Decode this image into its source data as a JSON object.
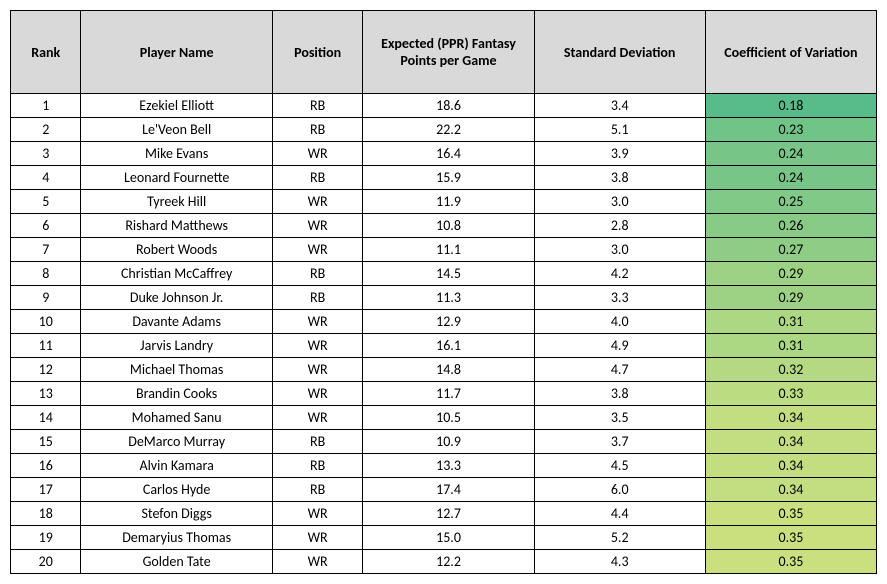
{
  "table": {
    "columns": [
      {
        "key": "rank",
        "label": "Rank"
      },
      {
        "key": "name",
        "label": "Player Name"
      },
      {
        "key": "pos",
        "label": "Position"
      },
      {
        "key": "pts",
        "label": "Expected (PPR) Fantasy Points per Game"
      },
      {
        "key": "std",
        "label": "Standard Deviation"
      },
      {
        "key": "cov",
        "label": "Coefficient of Variation"
      }
    ],
    "header_bg": "#d9d9d9",
    "border_color": "#000000",
    "cov_color_scale": {
      "min_value": 0.18,
      "max_value": 0.35,
      "min_color": "#57bb8a",
      "max_color": "#d4e07b"
    },
    "rows": [
      {
        "rank": "1",
        "name": "Ezekiel Elliott",
        "pos": "RB",
        "pts": "18.6",
        "std": "3.4",
        "cov": "0.18",
        "cov_bg": "#57bb8a"
      },
      {
        "rank": "2",
        "name": "Le'Veon Bell",
        "pos": "RB",
        "pts": "22.2",
        "std": "5.1",
        "cov": "0.23",
        "cov_bg": "#71c488"
      },
      {
        "rank": "3",
        "name": "Mike Evans",
        "pos": "WR",
        "pts": "16.4",
        "std": "3.9",
        "cov": "0.24",
        "cov_bg": "#78c687"
      },
      {
        "rank": "4",
        "name": "Leonard Fournette",
        "pos": "RB",
        "pts": "15.9",
        "std": "3.8",
        "cov": "0.24",
        "cov_bg": "#78c687"
      },
      {
        "rank": "5",
        "name": "Tyreek Hill",
        "pos": "WR",
        "pts": "11.9",
        "std": "3.0",
        "cov": "0.25",
        "cov_bg": "#80c987"
      },
      {
        "rank": "6",
        "name": "Rishard Matthews",
        "pos": "WR",
        "pts": "10.8",
        "std": "2.8",
        "cov": "0.26",
        "cov_bg": "#87cb86"
      },
      {
        "rank": "7",
        "name": "Robert Woods",
        "pos": "WR",
        "pts": "11.1",
        "std": "3.0",
        "cov": "0.27",
        "cov_bg": "#8fcd86"
      },
      {
        "rank": "8",
        "name": "Christian McCaffrey",
        "pos": "RB",
        "pts": "14.5",
        "std": "4.2",
        "cov": "0.29",
        "cov_bg": "#9dd284"
      },
      {
        "rank": "9",
        "name": "Duke Johnson Jr.",
        "pos": "RB",
        "pts": "11.3",
        "std": "3.3",
        "cov": "0.29",
        "cov_bg": "#9dd284"
      },
      {
        "rank": "10",
        "name": "Davante Adams",
        "pos": "WR",
        "pts": "12.9",
        "std": "4.0",
        "cov": "0.31",
        "cov_bg": "#acd783"
      },
      {
        "rank": "11",
        "name": "Jarvis Landry",
        "pos": "WR",
        "pts": "16.1",
        "std": "4.9",
        "cov": "0.31",
        "cov_bg": "#acd783"
      },
      {
        "rank": "12",
        "name": "Michael Thomas",
        "pos": "WR",
        "pts": "14.8",
        "std": "4.7",
        "cov": "0.32",
        "cov_bg": "#b4d982"
      },
      {
        "rank": "13",
        "name": "Brandin Cooks",
        "pos": "WR",
        "pts": "11.7",
        "std": "3.8",
        "cov": "0.33",
        "cov_bg": "#bbdc81"
      },
      {
        "rank": "14",
        "name": "Mohamed Sanu",
        "pos": "WR",
        "pts": "10.5",
        "std": "3.5",
        "cov": "0.34",
        "cov_bg": "#c3de80"
      },
      {
        "rank": "15",
        "name": "DeMarco Murray",
        "pos": "RB",
        "pts": "10.9",
        "std": "3.7",
        "cov": "0.34",
        "cov_bg": "#c3de80"
      },
      {
        "rank": "16",
        "name": "Alvin Kamara",
        "pos": "RB",
        "pts": "13.3",
        "std": "4.5",
        "cov": "0.34",
        "cov_bg": "#c3de80"
      },
      {
        "rank": "17",
        "name": "Carlos Hyde",
        "pos": "RB",
        "pts": "17.4",
        "std": "6.0",
        "cov": "0.34",
        "cov_bg": "#c3de80"
      },
      {
        "rank": "18",
        "name": "Stefon Diggs",
        "pos": "WR",
        "pts": "12.7",
        "std": "4.4",
        "cov": "0.35",
        "cov_bg": "#cae07f"
      },
      {
        "rank": "19",
        "name": "Demaryius Thomas",
        "pos": "WR",
        "pts": "15.0",
        "std": "5.2",
        "cov": "0.35",
        "cov_bg": "#cae07f"
      },
      {
        "rank": "20",
        "name": "Golden Tate",
        "pos": "WR",
        "pts": "12.2",
        "std": "4.3",
        "cov": "0.35",
        "cov_bg": "#cae07f"
      }
    ]
  }
}
